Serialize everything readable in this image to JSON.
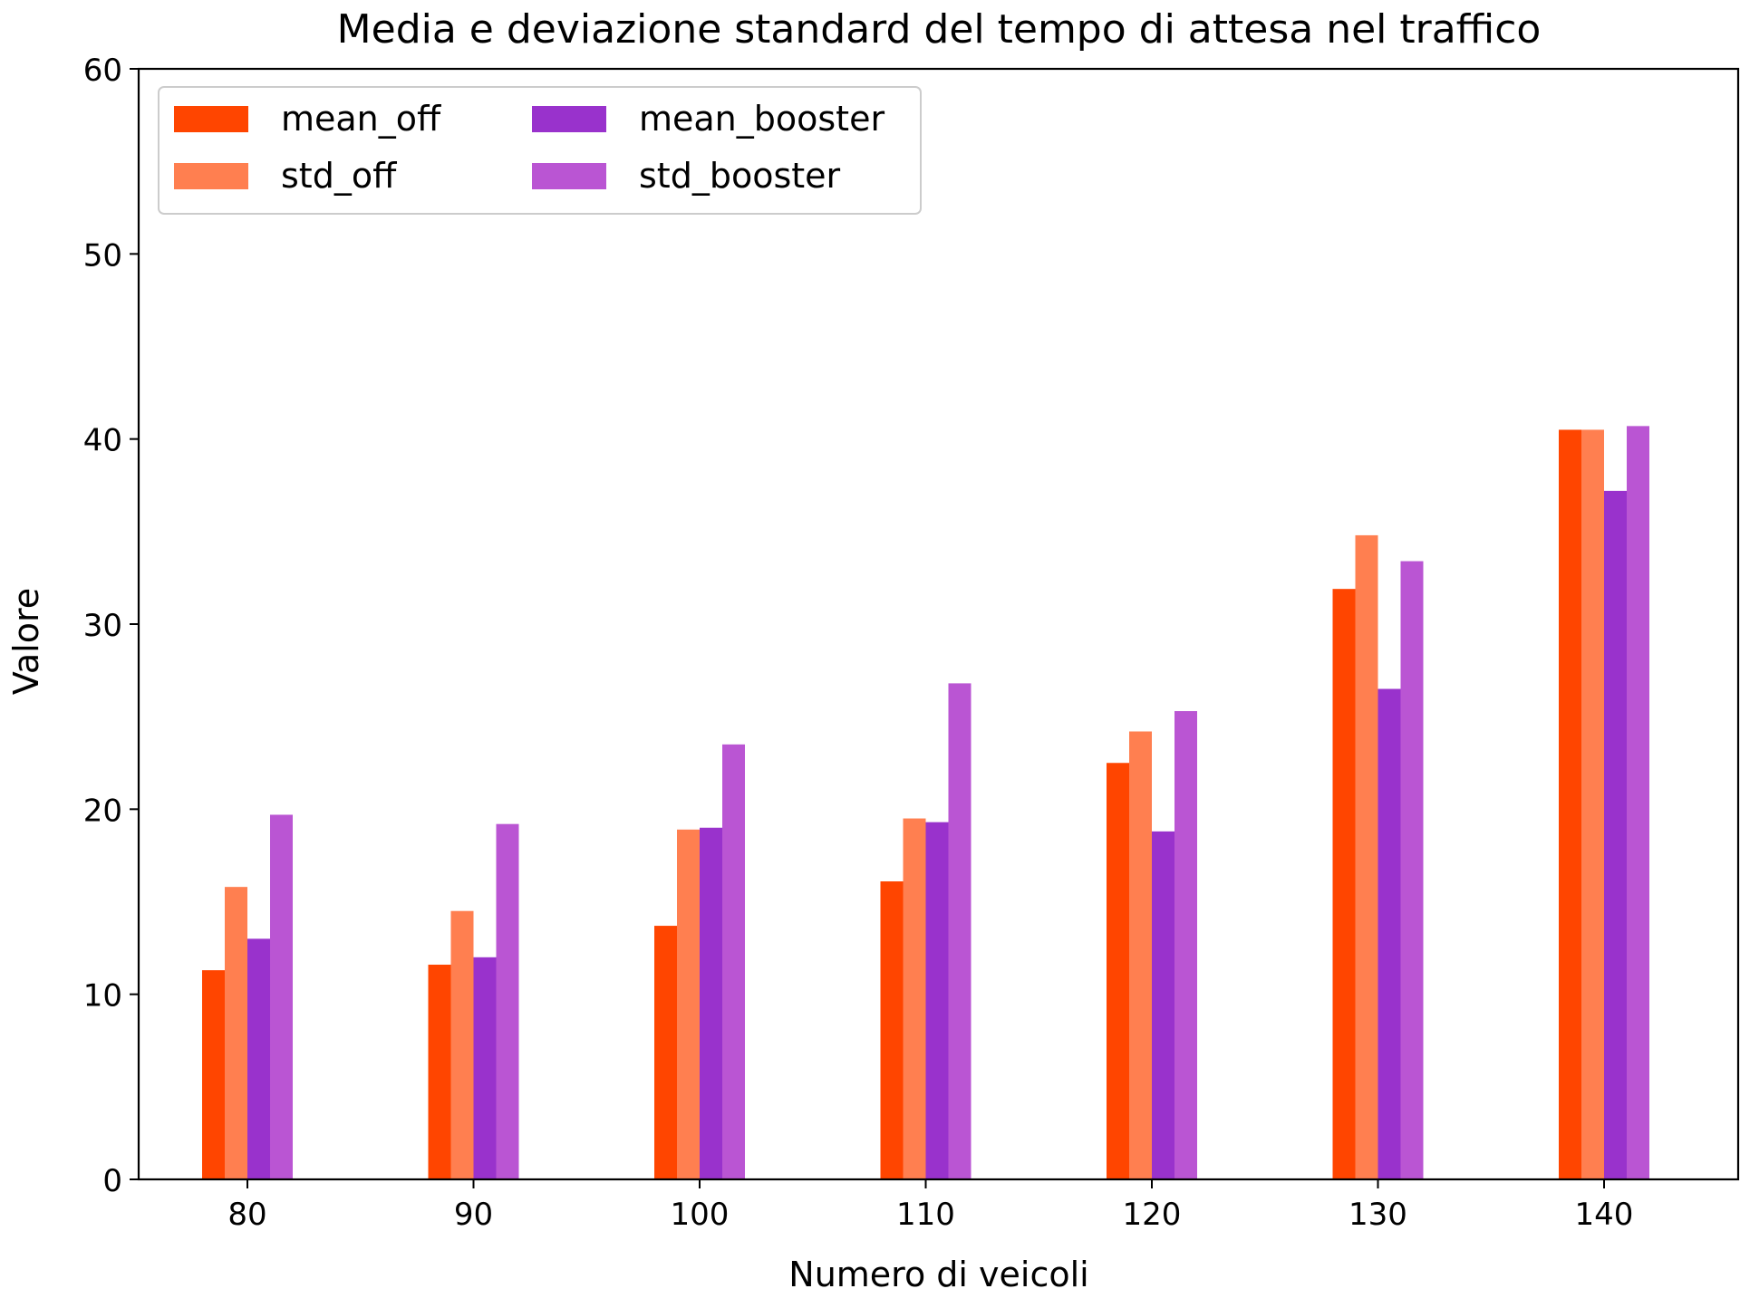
{
  "chart_data": {
    "type": "bar",
    "title": "Media e deviazione standard del tempo di attesa nel traffico",
    "xlabel": "Numero di veicoli",
    "ylabel": "Valore",
    "categories": [
      "80",
      "90",
      "100",
      "110",
      "120",
      "130",
      "140"
    ],
    "ylim": [
      0,
      60
    ],
    "yticks": [
      0,
      10,
      20,
      30,
      40,
      50,
      60
    ],
    "grid": false,
    "legend": {
      "placement": "top-left",
      "columns": 2
    },
    "series": [
      {
        "name": "mean_off",
        "color": "#ff4500",
        "values": [
          11.3,
          11.6,
          13.7,
          16.1,
          22.5,
          31.9,
          40.5
        ]
      },
      {
        "name": "std_off",
        "color": "#ff7f50",
        "values": [
          15.8,
          14.5,
          18.9,
          19.5,
          24.2,
          34.8,
          40.5
        ]
      },
      {
        "name": "mean_booster",
        "color": "#9932cc",
        "values": [
          13.0,
          12.0,
          19.0,
          19.3,
          18.8,
          26.5,
          37.2
        ]
      },
      {
        "name": "std_booster",
        "color": "#ba55d3",
        "values": [
          19.7,
          19.2,
          23.5,
          26.8,
          25.3,
          33.4,
          40.7
        ]
      }
    ]
  }
}
